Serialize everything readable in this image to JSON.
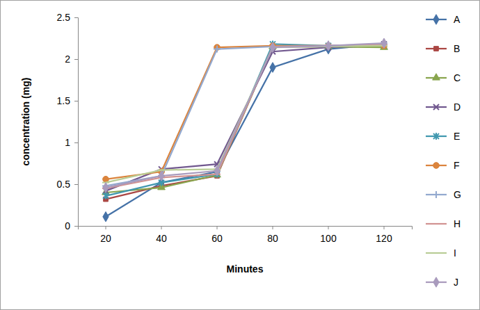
{
  "chart_data": {
    "type": "line",
    "x_label": "Minutes",
    "y_label": "concentration (mg)",
    "categories": [
      "20",
      "40",
      "60",
      "80",
      "100",
      "120"
    ],
    "series": [
      {
        "name": "A",
        "color": "#4572a7",
        "marker": "diamond",
        "values": [
          0.11,
          0.52,
          0.65,
          1.9,
          2.12,
          2.18
        ]
      },
      {
        "name": "B",
        "color": "#aa4643",
        "marker": "square",
        "values": [
          0.32,
          0.48,
          0.6,
          2.15,
          2.15,
          2.15
        ]
      },
      {
        "name": "C",
        "color": "#89a54e",
        "marker": "triangle",
        "values": [
          0.4,
          0.46,
          0.61,
          2.15,
          2.15,
          2.14
        ]
      },
      {
        "name": "D",
        "color": "#71588f",
        "marker": "x",
        "values": [
          0.42,
          0.68,
          0.74,
          2.09,
          2.14,
          2.18
        ]
      },
      {
        "name": "E",
        "color": "#4198af",
        "marker": "star",
        "values": [
          0.36,
          0.52,
          0.62,
          2.18,
          2.16,
          2.17
        ]
      },
      {
        "name": "F",
        "color": "#db843d",
        "marker": "circle",
        "values": [
          0.56,
          0.65,
          2.14,
          2.16,
          2.16,
          2.16
        ]
      },
      {
        "name": "G",
        "color": "#93a9cf",
        "marker": "plus",
        "values": [
          0.48,
          0.6,
          2.12,
          2.15,
          2.16,
          2.18
        ]
      },
      {
        "name": "H",
        "color": "#d19392",
        "marker": "dash",
        "values": [
          0.45,
          0.58,
          0.62,
          2.15,
          2.16,
          2.17
        ]
      },
      {
        "name": "I",
        "color": "#b9cd96",
        "marker": "dash",
        "values": [
          0.52,
          0.67,
          0.68,
          2.14,
          2.15,
          2.16
        ]
      },
      {
        "name": "J",
        "color": "#a99bbd",
        "marker": "diamond",
        "values": [
          0.46,
          0.6,
          0.66,
          2.14,
          2.16,
          2.19
        ]
      }
    ],
    "ylim": [
      0,
      2.5
    ],
    "yticks": [
      0,
      0.5,
      1,
      1.5,
      2,
      2.5
    ],
    "grid": false,
    "legend": "right"
  }
}
